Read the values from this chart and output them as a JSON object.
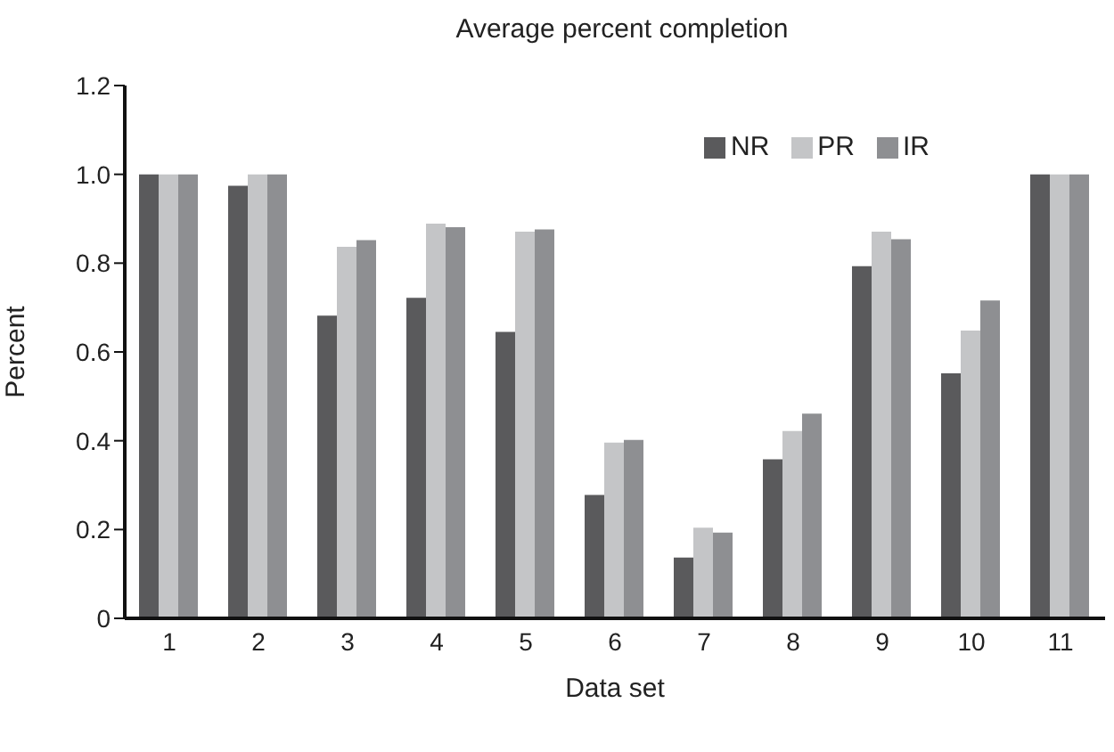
{
  "chart_data": {
    "type": "bar",
    "title": "Average percent completion",
    "xlabel": "Data set",
    "ylabel": "Percent",
    "categories": [
      "1",
      "2",
      "3",
      "4",
      "5",
      "6",
      "7",
      "8",
      "9",
      "10",
      "11"
    ],
    "series": [
      {
        "name": "NR",
        "color": "#5a5a5c",
        "values": [
          1.0,
          0.974,
          0.682,
          0.722,
          0.645,
          0.278,
          0.137,
          0.358,
          0.793,
          0.552,
          1.0
        ]
      },
      {
        "name": "PR",
        "color": "#c4c5c7",
        "values": [
          1.0,
          1.0,
          0.837,
          0.889,
          0.871,
          0.396,
          0.204,
          0.422,
          0.871,
          0.648,
          1.0
        ]
      },
      {
        "name": "IR",
        "color": "#8e8f92",
        "values": [
          1.0,
          1.0,
          0.852,
          0.881,
          0.876,
          0.402,
          0.193,
          0.461,
          0.854,
          0.716,
          1.0
        ]
      }
    ],
    "ylim": [
      0,
      1.2
    ],
    "yticks": [
      0,
      0.2,
      0.4,
      0.6,
      0.8,
      {
        "value": 1,
        "label": "1.0"
      },
      1.2
    ],
    "grid": false,
    "legend": "top right"
  }
}
